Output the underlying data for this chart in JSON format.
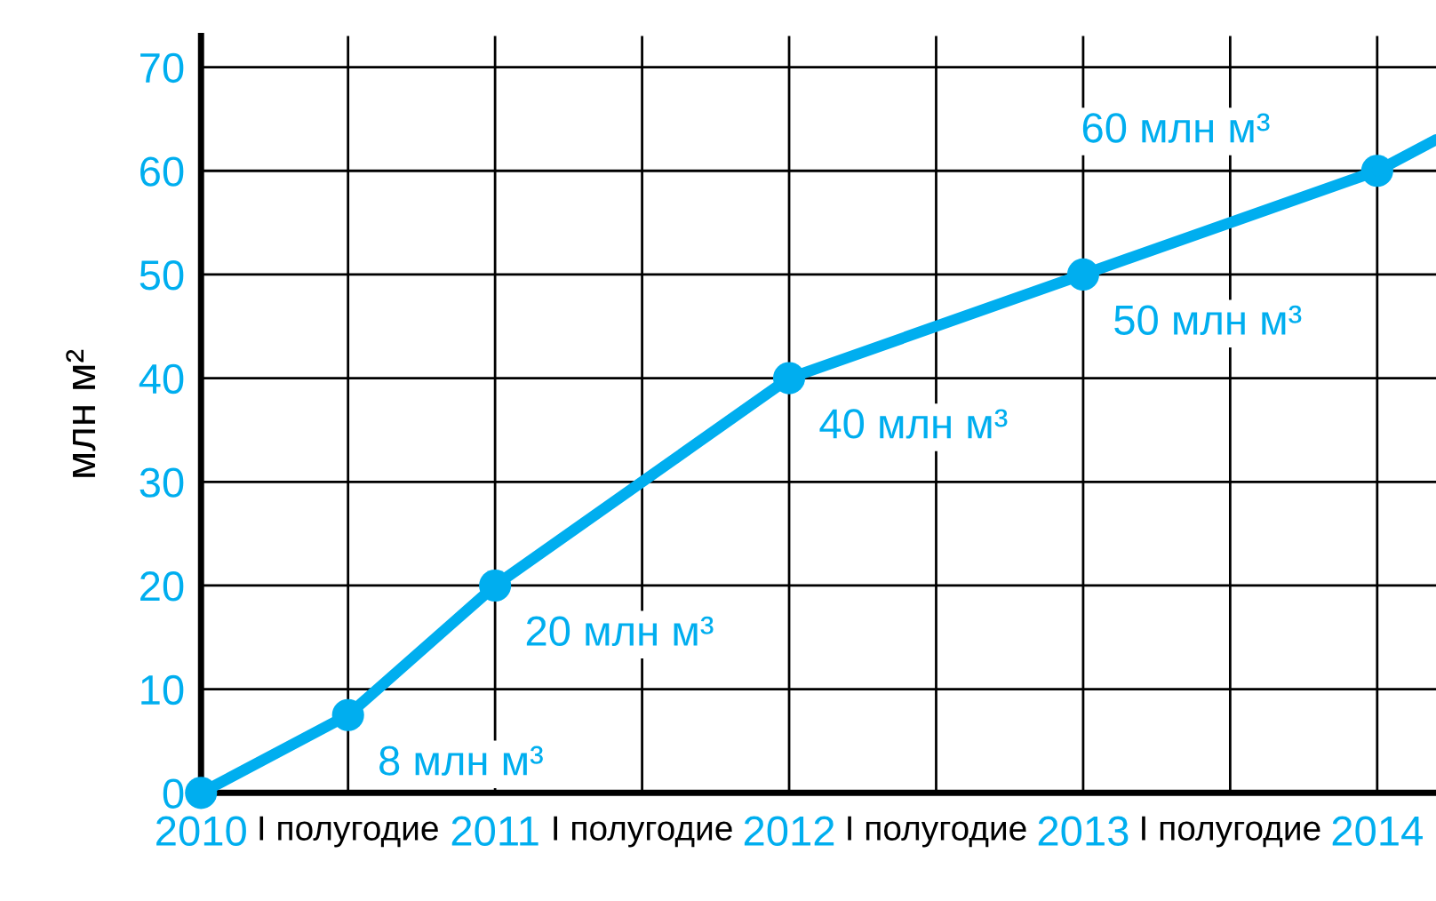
{
  "chart_data": {
    "type": "line",
    "ylabel": "млн м²",
    "series": [
      {
        "color": "#00aeef",
        "x": [
          2010,
          2010.5,
          2011,
          2012,
          2013,
          2014
        ],
        "values": [
          0,
          7.5,
          20,
          40,
          50,
          60
        ],
        "marker": "circle"
      },
      {
        "color": "#00aeef",
        "x": [
          2014,
          2014.2
        ],
        "values": [
          60,
          63
        ],
        "marker": "none"
      }
    ],
    "xlim": [
      2010,
      2014.2
    ],
    "ylim": [
      0,
      73
    ],
    "xticks": [
      2010,
      {
        "value": 2010.5,
        "label": "I полугодие"
      },
      2011,
      {
        "value": 2011.5,
        "label": "I полугодие"
      },
      2012,
      {
        "value": 2012.5,
        "label": "I полугодие"
      },
      2013,
      {
        "value": 2013.5,
        "label": "I полугодие"
      },
      2014
    ],
    "yticks": [
      0,
      10,
      20,
      30,
      40,
      50,
      60,
      70
    ],
    "grid": true,
    "annotations": [
      {
        "text": "8 млн м³",
        "x": 2010.5,
        "y": 7.5
      },
      {
        "text": "20 млн м³",
        "x": 2011,
        "y": 20
      },
      {
        "text": "40 млн м³",
        "x": 2012,
        "y": 40
      },
      {
        "text": "50 млн м³",
        "x": 2013,
        "y": 50
      },
      {
        "text": "60 млн м³",
        "x": 2014,
        "y": 60
      }
    ]
  }
}
